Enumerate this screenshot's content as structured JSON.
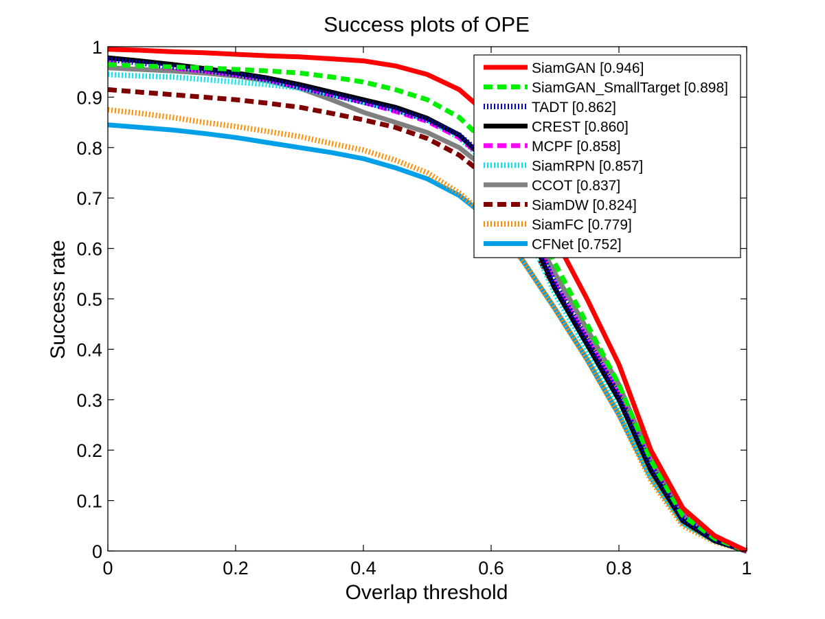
{
  "chart_data": {
    "type": "line",
    "title": "Success plots of OPE",
    "xlabel": "Overlap threshold",
    "ylabel": "Success rate",
    "xlim": [
      0,
      1
    ],
    "ylim": [
      0,
      1
    ],
    "xticks": [
      "0",
      "0.2",
      "0.4",
      "0.6",
      "0.8",
      "1"
    ],
    "yticks": [
      "0",
      "0.1",
      "0.2",
      "0.3",
      "0.4",
      "0.5",
      "0.6",
      "0.7",
      "0.8",
      "0.9",
      "1"
    ],
    "grid": false,
    "legend_position": "top-right",
    "x": [
      0,
      0.05,
      0.1,
      0.15,
      0.2,
      0.25,
      0.3,
      0.35,
      0.4,
      0.45,
      0.5,
      0.55,
      0.6,
      0.65,
      0.7,
      0.75,
      0.8,
      0.85,
      0.9,
      0.95,
      1
    ],
    "series": [
      {
        "name": "SiamGAN [0.946]",
        "color": "#ff0000",
        "style": "solid",
        "values": [
          0.995,
          0.993,
          0.99,
          0.988,
          0.985,
          0.982,
          0.98,
          0.976,
          0.972,
          0.962,
          0.945,
          0.915,
          0.86,
          0.76,
          0.62,
          0.5,
          0.37,
          0.2,
          0.085,
          0.03,
          0.0
        ]
      },
      {
        "name": "SiamGAN_SmallTarget [0.898]",
        "color": "#00ee00",
        "style": "dash",
        "values": [
          0.965,
          0.962,
          0.96,
          0.958,
          0.955,
          0.952,
          0.948,
          0.94,
          0.93,
          0.915,
          0.895,
          0.86,
          0.8,
          0.7,
          0.57,
          0.45,
          0.33,
          0.18,
          0.07,
          0.025,
          0.0
        ]
      },
      {
        "name": "TADT [0.862]",
        "color": "#0000cc",
        "style": "dot",
        "values": [
          0.975,
          0.968,
          0.96,
          0.953,
          0.945,
          0.935,
          0.92,
          0.905,
          0.89,
          0.875,
          0.855,
          0.825,
          0.77,
          0.67,
          0.53,
          0.42,
          0.31,
          0.17,
          0.065,
          0.022,
          0.0
        ]
      },
      {
        "name": "CREST [0.860]",
        "color": "#000000",
        "style": "solid",
        "values": [
          0.978,
          0.972,
          0.965,
          0.957,
          0.948,
          0.938,
          0.925,
          0.91,
          0.895,
          0.88,
          0.858,
          0.825,
          0.765,
          0.66,
          0.52,
          0.41,
          0.3,
          0.16,
          0.06,
          0.02,
          0.0
        ]
      },
      {
        "name": "MCPF [0.858]",
        "color": "#ff00ff",
        "style": "dash",
        "values": [
          0.968,
          0.963,
          0.958,
          0.952,
          0.945,
          0.935,
          0.92,
          0.905,
          0.89,
          0.872,
          0.852,
          0.82,
          0.765,
          0.665,
          0.53,
          0.42,
          0.31,
          0.175,
          0.075,
          0.03,
          0.0
        ]
      },
      {
        "name": "SiamRPN [0.857]",
        "color": "#00e5ee",
        "style": "dot",
        "values": [
          0.945,
          0.942,
          0.94,
          0.935,
          0.93,
          0.925,
          0.918,
          0.905,
          0.89,
          0.875,
          0.855,
          0.82,
          0.76,
          0.65,
          0.51,
          0.4,
          0.29,
          0.15,
          0.055,
          0.02,
          0.0
        ]
      },
      {
        "name": "CCOT [0.837]",
        "color": "#808080",
        "style": "solid",
        "values": [
          0.958,
          0.955,
          0.952,
          0.948,
          0.942,
          0.932,
          0.918,
          0.895,
          0.87,
          0.85,
          0.83,
          0.8,
          0.75,
          0.67,
          0.55,
          0.44,
          0.33,
          0.18,
          0.07,
          0.025,
          0.0
        ]
      },
      {
        "name": "SiamDW [0.824]",
        "color": "#800000",
        "style": "dash",
        "values": [
          0.915,
          0.91,
          0.905,
          0.9,
          0.895,
          0.888,
          0.88,
          0.868,
          0.855,
          0.84,
          0.818,
          0.785,
          0.735,
          0.64,
          0.52,
          0.42,
          0.31,
          0.18,
          0.08,
          0.03,
          0.0
        ]
      },
      {
        "name": "SiamFC [0.779]",
        "color": "#ff8c00",
        "style": "dot",
        "values": [
          0.875,
          0.868,
          0.86,
          0.85,
          0.842,
          0.832,
          0.822,
          0.808,
          0.795,
          0.775,
          0.75,
          0.71,
          0.655,
          0.575,
          0.48,
          0.38,
          0.27,
          0.14,
          0.05,
          0.018,
          0.0
        ]
      },
      {
        "name": "CFNet [0.752]",
        "color": "#00a0e8",
        "style": "solid",
        "values": [
          0.845,
          0.84,
          0.835,
          0.828,
          0.82,
          0.81,
          0.8,
          0.79,
          0.778,
          0.76,
          0.738,
          0.705,
          0.655,
          0.575,
          0.48,
          0.38,
          0.27,
          0.145,
          0.055,
          0.02,
          0.0
        ]
      }
    ]
  }
}
